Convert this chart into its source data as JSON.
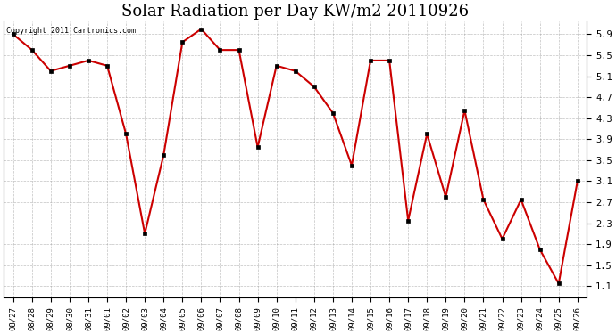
{
  "title": "Solar Radiation per Day KW/m2 20110926",
  "copyright_text": "Copyright 2011 Cartronics.com",
  "x_labels": [
    "08/27",
    "08/28",
    "08/29",
    "08/30",
    "08/31",
    "09/01",
    "09/02",
    "09/03",
    "09/04",
    "09/05",
    "09/06",
    "09/07",
    "09/08",
    "09/09",
    "09/10",
    "09/11",
    "09/12",
    "09/13",
    "09/14",
    "09/15",
    "09/16",
    "09/17",
    "09/18",
    "09/19",
    "09/20",
    "09/21",
    "09/22",
    "09/23",
    "09/24",
    "09/25",
    "09/26"
  ],
  "y_values": [
    5.9,
    5.6,
    5.2,
    5.3,
    5.4,
    5.3,
    4.0,
    2.1,
    3.6,
    5.75,
    6.0,
    5.6,
    5.6,
    3.75,
    5.3,
    5.2,
    4.9,
    4.4,
    3.4,
    5.4,
    5.4,
    2.35,
    4.0,
    2.8,
    4.45,
    2.75,
    2.0,
    2.75,
    1.8,
    1.15,
    3.1
  ],
  "line_color": "#cc0000",
  "marker_color": "#000000",
  "bg_color": "#ffffff",
  "grid_color": "#999999",
  "title_fontsize": 13,
  "yticks": [
    1.1,
    1.5,
    1.9,
    2.3,
    2.7,
    3.1,
    3.5,
    3.9,
    4.3,
    4.7,
    5.1,
    5.5,
    5.9
  ],
  "ylim": [
    0.88,
    6.15
  ]
}
